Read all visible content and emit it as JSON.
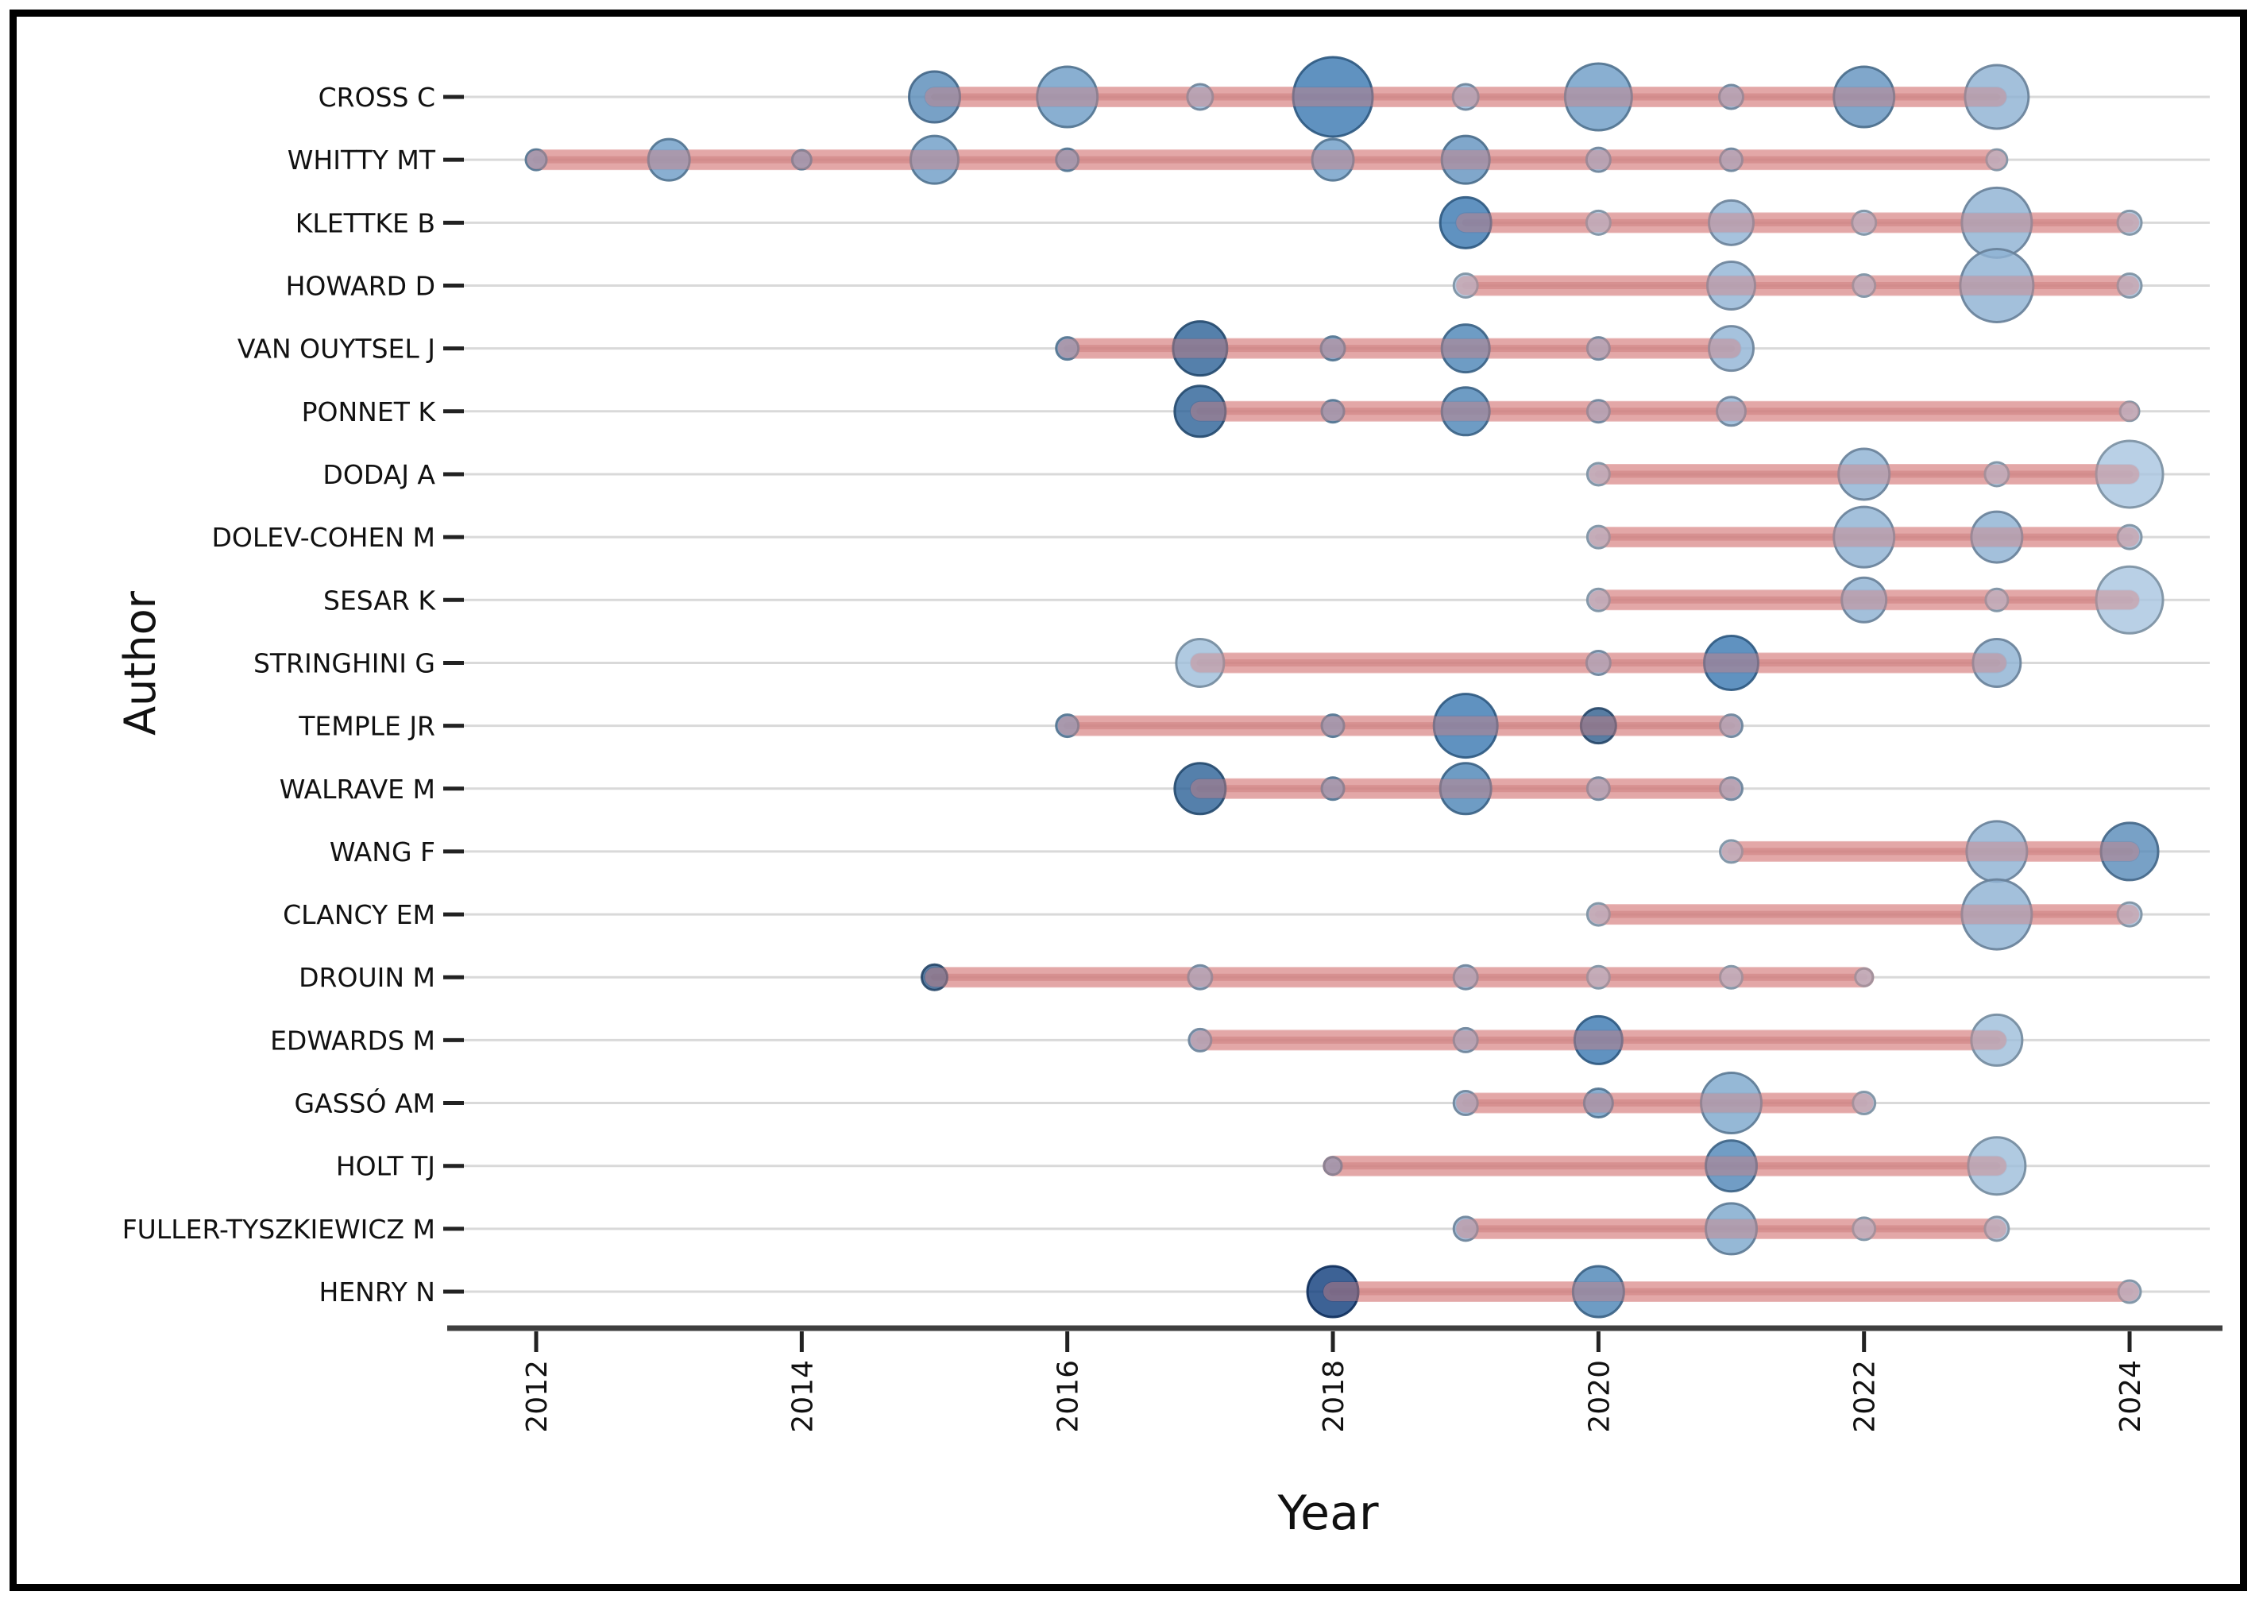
{
  "chart_data": {
    "type": "scatter",
    "subtype": "authors-production-over-time-bubble-timeline",
    "title": "",
    "xlabel": "Year",
    "ylabel": "Author",
    "x_ticks": [
      2012,
      2014,
      2016,
      2018,
      2020,
      2022,
      2024
    ],
    "x_range": [
      2011.3,
      2024.7
    ],
    "grid": "horizontal-light-gray",
    "legend": "none",
    "colors": {
      "timeline": "#dc8f8f",
      "timeline_core": "#b35959",
      "gridline": "#d9d9d9",
      "axis_line": "#3f3f3f",
      "tick": "#222222",
      "frame_border": "#000000",
      "background": "#ffffff"
    },
    "series": [
      {
        "author": "CROSS C",
        "active_from": 2015,
        "active_to": 2023,
        "points": [
          {
            "year": 2015,
            "r": 32,
            "shade": "#5a8cba"
          },
          {
            "year": 2016,
            "r": 38,
            "shade": "#6f9ec7"
          },
          {
            "year": 2017,
            "r": 16,
            "shade": "#93b5d5"
          },
          {
            "year": 2018,
            "r": 50,
            "shade": "#3d7ab2"
          },
          {
            "year": 2019,
            "r": 16,
            "shade": "#93b5d5"
          },
          {
            "year": 2020,
            "r": 42,
            "shade": "#6f9ec7"
          },
          {
            "year": 2021,
            "r": 15,
            "shade": "#93b5d5"
          },
          {
            "year": 2022,
            "r": 38,
            "shade": "#6494c0"
          },
          {
            "year": 2023,
            "r": 40,
            "shade": "#8fb2d3"
          }
        ]
      },
      {
        "author": "WHITTY MT",
        "active_from": 2012,
        "active_to": 2023,
        "points": [
          {
            "year": 2012,
            "r": 13,
            "shade": "#6f9ec7"
          },
          {
            "year": 2013,
            "r": 26,
            "shade": "#6f9ec7"
          },
          {
            "year": 2014,
            "r": 12,
            "shade": "#6f9ec7"
          },
          {
            "year": 2015,
            "r": 30,
            "shade": "#6f9ec7"
          },
          {
            "year": 2016,
            "r": 14,
            "shade": "#6f9ec7"
          },
          {
            "year": 2018,
            "r": 26,
            "shade": "#6f9ec7"
          },
          {
            "year": 2019,
            "r": 30,
            "shade": "#6494c0"
          },
          {
            "year": 2020,
            "r": 15,
            "shade": "#93b5d5"
          },
          {
            "year": 2021,
            "r": 14,
            "shade": "#93b5d5"
          },
          {
            "year": 2023,
            "r": 13,
            "shade": "#a9c6e0"
          }
        ]
      },
      {
        "author": "KLETTKE B",
        "active_from": 2019,
        "active_to": 2024,
        "points": [
          {
            "year": 2019,
            "r": 32,
            "shade": "#3d7ab2"
          },
          {
            "year": 2020,
            "r": 15,
            "shade": "#a9c6e0"
          },
          {
            "year": 2021,
            "r": 28,
            "shade": "#93b5d5"
          },
          {
            "year": 2022,
            "r": 15,
            "shade": "#a9c6e0"
          },
          {
            "year": 2023,
            "r": 44,
            "shade": "#8fb2d3"
          },
          {
            "year": 2024,
            "r": 15,
            "shade": "#a9c6e0"
          }
        ]
      },
      {
        "author": "HOWARD D",
        "active_from": 2019,
        "active_to": 2024,
        "points": [
          {
            "year": 2019,
            "r": 15,
            "shade": "#a9c6e0"
          },
          {
            "year": 2021,
            "r": 30,
            "shade": "#93b5d5"
          },
          {
            "year": 2022,
            "r": 14,
            "shade": "#a9c6e0"
          },
          {
            "year": 2023,
            "r": 46,
            "shade": "#8fb2d3"
          },
          {
            "year": 2024,
            "r": 15,
            "shade": "#a9c6e0"
          }
        ]
      },
      {
        "author": "VAN OUYTSEL J",
        "active_from": 2016,
        "active_to": 2021,
        "points": [
          {
            "year": 2016,
            "r": 14,
            "shade": "#6f9ec7"
          },
          {
            "year": 2017,
            "r": 34,
            "shade": "#2f6498"
          },
          {
            "year": 2018,
            "r": 15,
            "shade": "#6f9ec7"
          },
          {
            "year": 2019,
            "r": 30,
            "shade": "#4e86b7"
          },
          {
            "year": 2020,
            "r": 14,
            "shade": "#93b5d5"
          },
          {
            "year": 2021,
            "r": 28,
            "shade": "#93b5d5"
          }
        ]
      },
      {
        "author": "PONNET K",
        "active_from": 2017,
        "active_to": 2024,
        "points": [
          {
            "year": 2017,
            "r": 32,
            "shade": "#2f6498"
          },
          {
            "year": 2018,
            "r": 14,
            "shade": "#6f9ec7"
          },
          {
            "year": 2019,
            "r": 30,
            "shade": "#4e86b7"
          },
          {
            "year": 2020,
            "r": 14,
            "shade": "#93b5d5"
          },
          {
            "year": 2021,
            "r": 18,
            "shade": "#93b5d5"
          },
          {
            "year": 2024,
            "r": 12,
            "shade": "#a9c6e0"
          }
        ]
      },
      {
        "author": "DODAJ A",
        "active_from": 2020,
        "active_to": 2024,
        "points": [
          {
            "year": 2020,
            "r": 14,
            "shade": "#a9c6e0"
          },
          {
            "year": 2022,
            "r": 32,
            "shade": "#8fb2d3"
          },
          {
            "year": 2023,
            "r": 15,
            "shade": "#a9c6e0"
          },
          {
            "year": 2024,
            "r": 42,
            "shade": "#a9c6e0"
          }
        ]
      },
      {
        "author": "DOLEV-COHEN M",
        "active_from": 2020,
        "active_to": 2024,
        "points": [
          {
            "year": 2020,
            "r": 14,
            "shade": "#a9c6e0"
          },
          {
            "year": 2022,
            "r": 38,
            "shade": "#8fb2d3"
          },
          {
            "year": 2023,
            "r": 32,
            "shade": "#8fb2d3"
          },
          {
            "year": 2024,
            "r": 15,
            "shade": "#a9c6e0"
          }
        ]
      },
      {
        "author": "SESAR K",
        "active_from": 2020,
        "active_to": 2024,
        "points": [
          {
            "year": 2020,
            "r": 14,
            "shade": "#a9c6e0"
          },
          {
            "year": 2022,
            "r": 28,
            "shade": "#8fb2d3"
          },
          {
            "year": 2023,
            "r": 14,
            "shade": "#a9c6e0"
          },
          {
            "year": 2024,
            "r": 42,
            "shade": "#a9c6e0"
          }
        ]
      },
      {
        "author": "STRINGHINI G",
        "active_from": 2017,
        "active_to": 2023,
        "points": [
          {
            "year": 2017,
            "r": 30,
            "shade": "#9fbeda"
          },
          {
            "year": 2020,
            "r": 15,
            "shade": "#93b5d5"
          },
          {
            "year": 2021,
            "r": 34,
            "shade": "#3d7ab2"
          },
          {
            "year": 2023,
            "r": 30,
            "shade": "#8fb2d3"
          }
        ]
      },
      {
        "author": "TEMPLE JR",
        "active_from": 2016,
        "active_to": 2021,
        "points": [
          {
            "year": 2016,
            "r": 14,
            "shade": "#6f9ec7"
          },
          {
            "year": 2018,
            "r": 14,
            "shade": "#6f9ec7"
          },
          {
            "year": 2019,
            "r": 40,
            "shade": "#3d7ab2"
          },
          {
            "year": 2020,
            "r": 22,
            "shade": "#33608f"
          },
          {
            "year": 2021,
            "r": 14,
            "shade": "#93b5d5"
          }
        ]
      },
      {
        "author": "WALRAVE M",
        "active_from": 2017,
        "active_to": 2021,
        "points": [
          {
            "year": 2017,
            "r": 32,
            "shade": "#2f6498"
          },
          {
            "year": 2018,
            "r": 14,
            "shade": "#6f9ec7"
          },
          {
            "year": 2019,
            "r": 32,
            "shade": "#4e86b7"
          },
          {
            "year": 2020,
            "r": 14,
            "shade": "#93b5d5"
          },
          {
            "year": 2021,
            "r": 14,
            "shade": "#93b5d5"
          }
        ]
      },
      {
        "author": "WANG F",
        "active_from": 2021,
        "active_to": 2024,
        "points": [
          {
            "year": 2021,
            "r": 14,
            "shade": "#a9c6e0"
          },
          {
            "year": 2023,
            "r": 38,
            "shade": "#8fb2d3"
          },
          {
            "year": 2024,
            "r": 36,
            "shade": "#5a8cba"
          }
        ]
      },
      {
        "author": "CLANCY EM",
        "active_from": 2020,
        "active_to": 2024,
        "points": [
          {
            "year": 2020,
            "r": 14,
            "shade": "#a9c6e0"
          },
          {
            "year": 2023,
            "r": 44,
            "shade": "#8fb2d3"
          },
          {
            "year": 2024,
            "r": 15,
            "shade": "#a9c6e0"
          }
        ]
      },
      {
        "author": "DROUIN M",
        "active_from": 2015,
        "active_to": 2022,
        "points": [
          {
            "year": 2015,
            "r": 16,
            "shade": "#33608f"
          },
          {
            "year": 2017,
            "r": 15,
            "shade": "#93b5d5"
          },
          {
            "year": 2019,
            "r": 15,
            "shade": "#93b5d5"
          },
          {
            "year": 2020,
            "r": 14,
            "shade": "#a9c6e0"
          },
          {
            "year": 2021,
            "r": 14,
            "shade": "#a9c6e0"
          },
          {
            "year": 2022,
            "r": 11,
            "shade": "#a9c6e0"
          }
        ]
      },
      {
        "author": "EDWARDS M",
        "active_from": 2017,
        "active_to": 2023,
        "points": [
          {
            "year": 2017,
            "r": 14,
            "shade": "#93b5d5"
          },
          {
            "year": 2019,
            "r": 15,
            "shade": "#93b5d5"
          },
          {
            "year": 2020,
            "r": 30,
            "shade": "#3d7ab2"
          },
          {
            "year": 2023,
            "r": 32,
            "shade": "#9fbeda"
          }
        ]
      },
      {
        "author": "GASSÓ AM",
        "active_from": 2019,
        "active_to": 2022,
        "points": [
          {
            "year": 2019,
            "r": 15,
            "shade": "#93b5d5"
          },
          {
            "year": 2020,
            "r": 18,
            "shade": "#6f9ec7"
          },
          {
            "year": 2021,
            "r": 38,
            "shade": "#7ea8cd"
          },
          {
            "year": 2022,
            "r": 14,
            "shade": "#a9c6e0"
          }
        ]
      },
      {
        "author": "HOLT TJ",
        "active_from": 2018,
        "active_to": 2023,
        "points": [
          {
            "year": 2018,
            "r": 11,
            "shade": "#6f9ec7"
          },
          {
            "year": 2021,
            "r": 32,
            "shade": "#5288b8"
          },
          {
            "year": 2023,
            "r": 36,
            "shade": "#9fbeda"
          }
        ]
      },
      {
        "author": "FULLER-TYSZKIEWICZ M",
        "active_from": 2019,
        "active_to": 2023,
        "points": [
          {
            "year": 2019,
            "r": 15,
            "shade": "#93b5d5"
          },
          {
            "year": 2021,
            "r": 32,
            "shade": "#7ea8cd"
          },
          {
            "year": 2022,
            "r": 14,
            "shade": "#a9c6e0"
          },
          {
            "year": 2023,
            "r": 15,
            "shade": "#a9c6e0"
          }
        ]
      },
      {
        "author": "HENRY N",
        "active_from": 2018,
        "active_to": 2024,
        "points": [
          {
            "year": 2018,
            "r": 32,
            "shade": "#123f7e"
          },
          {
            "year": 2020,
            "r": 32,
            "shade": "#4e86b7"
          },
          {
            "year": 2024,
            "r": 14,
            "shade": "#a9c6e0"
          }
        ]
      }
    ]
  },
  "layout_labels": {
    "y_axis_title": "Author",
    "x_axis_title": "Year"
  }
}
